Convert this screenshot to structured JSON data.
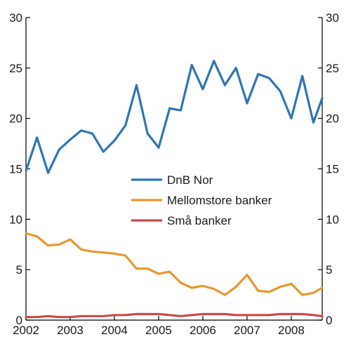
{
  "chart_data": {
    "type": "line",
    "title": "",
    "xlabel": "",
    "ylabel": "",
    "xlim": [
      2002.0,
      2008.7
    ],
    "ylim": [
      0,
      30
    ],
    "y_ticks": [
      0,
      5,
      10,
      15,
      20,
      25,
      30
    ],
    "x_ticks": [
      2002,
      2003,
      2004,
      2005,
      2006,
      2007,
      2008
    ],
    "x_tick_labels": [
      "2002",
      "2003",
      "2004",
      "2005",
      "2006",
      "2007",
      "2008"
    ],
    "secondary_y_axis": true,
    "grid": false,
    "legend_position": "center",
    "x": [
      2002.0,
      2002.25,
      2002.5,
      2002.75,
      2003.0,
      2003.25,
      2003.5,
      2003.75,
      2004.0,
      2004.25,
      2004.5,
      2004.75,
      2005.0,
      2005.25,
      2005.5,
      2005.75,
      2006.0,
      2006.25,
      2006.5,
      2006.75,
      2007.0,
      2007.25,
      2007.5,
      2007.75,
      2008.0,
      2008.25,
      2008.5,
      2008.7
    ],
    "series": [
      {
        "name": "DnB Nor",
        "color": "#2f75b5",
        "values": [
          14.8,
          18.1,
          14.6,
          16.9,
          17.9,
          18.8,
          18.5,
          16.7,
          17.8,
          19.3,
          23.3,
          18.5,
          17.1,
          21.0,
          20.8,
          25.3,
          22.9,
          25.7,
          23.3,
          25.0,
          21.5,
          24.4,
          24.0,
          22.7,
          20.0,
          24.2,
          19.6,
          22.0
        ]
      },
      {
        "name": "Mellomstore banker",
        "color": "#e8972e",
        "values": [
          8.6,
          8.3,
          7.4,
          7.5,
          8.0,
          7.0,
          6.8,
          6.7,
          6.6,
          6.4,
          5.1,
          5.1,
          4.6,
          4.8,
          3.7,
          3.2,
          3.4,
          3.1,
          2.5,
          3.3,
          4.5,
          2.9,
          2.8,
          3.3,
          3.6,
          2.5,
          2.7,
          3.2
        ]
      },
      {
        "name": "Små banker",
        "color": "#c94a4a",
        "values": [
          0.3,
          0.3,
          0.4,
          0.3,
          0.3,
          0.4,
          0.4,
          0.4,
          0.5,
          0.5,
          0.6,
          0.6,
          0.6,
          0.5,
          0.4,
          0.5,
          0.6,
          0.6,
          0.6,
          0.5,
          0.5,
          0.5,
          0.5,
          0.6,
          0.6,
          0.6,
          0.5,
          0.4
        ]
      }
    ]
  }
}
